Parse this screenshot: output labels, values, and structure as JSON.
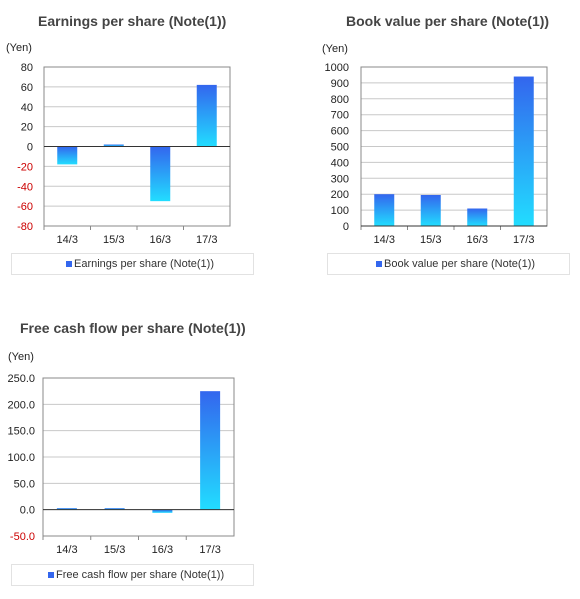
{
  "chart_data": [
    {
      "type": "bar",
      "title": "Earnings per share (Note(1))",
      "ylabel": "(Yen)",
      "categories": [
        "14/3",
        "15/3",
        "16/3",
        "17/3"
      ],
      "yticks": [
        "80",
        "60",
        "40",
        "20",
        "0",
        "-20",
        "-40",
        "-60",
        "-80"
      ],
      "ylim": [
        -80,
        80
      ],
      "series": [
        {
          "name": "Earnings per share (Note(1))",
          "values": [
            -18,
            2,
            -55,
            62
          ]
        }
      ],
      "grid": true,
      "legend": "bottom"
    },
    {
      "type": "bar",
      "title": "Book value per share (Note(1))",
      "ylabel": "(Yen)",
      "categories": [
        "14/3",
        "15/3",
        "16/3",
        "17/3"
      ],
      "yticks": [
        "1000",
        "900",
        "800",
        "700",
        "600",
        "500",
        "400",
        "300",
        "200",
        "100",
        "0"
      ],
      "ylim": [
        0,
        1000
      ],
      "series": [
        {
          "name": "Book value per share (Note(1))",
          "values": [
            200,
            195,
            110,
            940
          ]
        }
      ],
      "grid": true,
      "legend": "bottom"
    },
    {
      "type": "bar",
      "title": "Free cash flow per share (Note(1))",
      "ylabel": "(Yen)",
      "categories": [
        "14/3",
        "15/3",
        "16/3",
        "17/3"
      ],
      "yticks": [
        "250.0",
        "200.0",
        "150.0",
        "100.0",
        "50.0",
        "0.0",
        "-50.0"
      ],
      "ylim": [
        -50,
        250
      ],
      "series": [
        {
          "name": "Free cash flow per share (Note(1))",
          "values": [
            1,
            1,
            -6,
            225
          ]
        }
      ],
      "grid": true,
      "legend": "bottom"
    }
  ],
  "colors": {
    "bar_top": "#3366ee",
    "bar_bottom": "#22ddff",
    "negative_tick": "#cc0000",
    "grid": "#c8c8c8"
  }
}
